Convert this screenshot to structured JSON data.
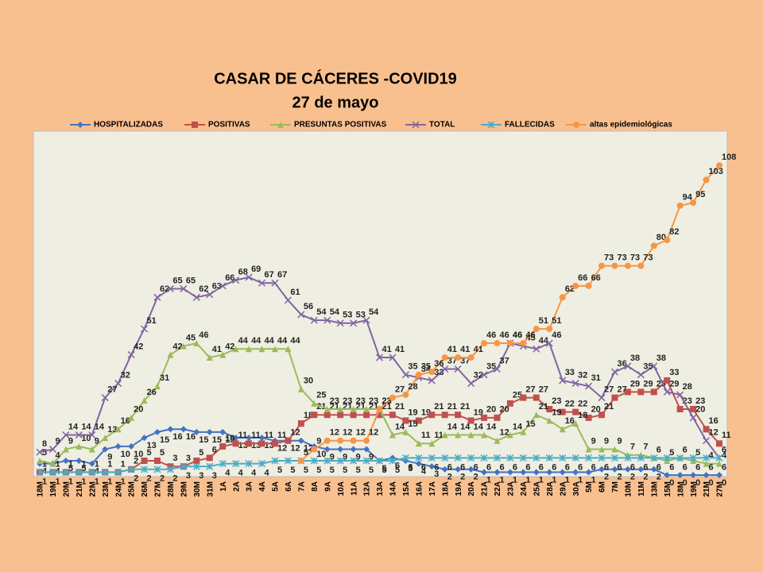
{
  "chart_data": {
    "type": "line",
    "title": "CASAR DE CÁCERES -COVID19",
    "subtitle": "27 de mayo",
    "categories": [
      "18M",
      "19M",
      "20M",
      "21M",
      "22M",
      "23M",
      "24M",
      "25M",
      "26M",
      "27M",
      "28M",
      "29M",
      "30M",
      "31M",
      "1A",
      "2A",
      "3A",
      "4A",
      "5A",
      "6A",
      "7A",
      "8A",
      "9A",
      "10A",
      "11A",
      "12A",
      "13A",
      "14A",
      "15A",
      "16A",
      "17A",
      "18A",
      "19A",
      "20A",
      "21A",
      "22A",
      "23A",
      "24A",
      "25A",
      "28A",
      "29A",
      "30A",
      "5M",
      "6M",
      "7M",
      "10M",
      "11M",
      "13M",
      "15M",
      "18M",
      "19M",
      "21M",
      "27M"
    ],
    "ylim": [
      0,
      120
    ],
    "legend": "top",
    "series": [
      {
        "name": "HOSPITALIZADAS",
        "color": "#4472c4",
        "marker": "diamond",
        "values": [
          4,
          4,
          5,
          5,
          4,
          9,
          10,
          10,
          13,
          15,
          16,
          16,
          15,
          15,
          15,
          13,
          13,
          13,
          12,
          12,
          12,
          10,
          9,
          9,
          9,
          9,
          5,
          6,
          5,
          4,
          3,
          2,
          2,
          2,
          1,
          1,
          1,
          1,
          1,
          1,
          1,
          1,
          1,
          2,
          2,
          2,
          2,
          2,
          0,
          0,
          0,
          0,
          0
        ]
      },
      {
        "name": "POSITIVAS",
        "color": "#c0504d",
        "marker": "square",
        "values": [
          1,
          1,
          1,
          1,
          1,
          1,
          1,
          2,
          5,
          5,
          3,
          3,
          5,
          6,
          10,
          11,
          11,
          11,
          11,
          12,
          18,
          21,
          21,
          21,
          21,
          21,
          21,
          21,
          19,
          19,
          21,
          21,
          21,
          19,
          20,
          20,
          25,
          27,
          27,
          23,
          22,
          22,
          20,
          21,
          27,
          29,
          29,
          29,
          33,
          23,
          23,
          16,
          11
        ]
      },
      {
        "name": "PRESUNTAS POSITIVAS",
        "color": "#9bbb59",
        "marker": "triangle",
        "values": [
          5,
          4,
          9,
          10,
          9,
          13,
          16,
          20,
          26,
          31,
          42,
          45,
          46,
          41,
          42,
          44,
          44,
          44,
          44,
          44,
          30,
          25,
          23,
          23,
          23,
          23,
          23,
          14,
          15,
          11,
          11,
          14,
          14,
          14,
          14,
          12,
          14,
          15,
          21,
          19,
          16,
          18,
          9,
          9,
          9,
          7,
          7,
          6,
          5,
          6,
          5,
          4,
          4
        ]
      },
      {
        "name": "TOTAL",
        "color": "#8064a2",
        "marker": "x",
        "values": [
          8,
          9,
          14,
          14,
          14,
          27,
          32,
          42,
          51,
          62,
          65,
          65,
          62,
          63,
          66,
          68,
          69,
          67,
          67,
          61,
          56,
          54,
          54,
          53,
          53,
          54,
          41,
          41,
          35,
          34,
          33,
          37,
          37,
          32,
          35,
          37,
          46,
          45,
          44,
          46,
          33,
          32,
          31,
          27,
          36,
          38,
          35,
          38,
          29,
          28,
          20,
          12,
          6
        ]
      },
      {
        "name": "FALLECIDAS",
        "color": "#4bacc6",
        "marker": "star",
        "values": [
          1,
          1,
          1,
          1,
          1,
          1,
          1,
          2,
          2,
          2,
          2,
          3,
          3,
          3,
          4,
          4,
          4,
          4,
          5,
          5,
          5,
          5,
          5,
          5,
          5,
          5,
          5,
          5,
          6,
          6,
          6,
          6,
          6,
          6,
          6,
          6,
          6,
          6,
          6,
          6,
          6,
          6,
          6,
          6,
          6,
          6,
          6,
          6,
          6,
          6,
          6,
          6,
          6
        ]
      },
      {
        "name": "altas epidemiológicas",
        "color": "#f79646",
        "marker": "circle",
        "values": [
          null,
          null,
          null,
          null,
          null,
          null,
          null,
          null,
          null,
          null,
          null,
          null,
          null,
          null,
          null,
          null,
          null,
          null,
          null,
          null,
          5,
          9,
          12,
          12,
          12,
          12,
          23,
          27,
          28,
          35,
          36,
          41,
          41,
          41,
          46,
          46,
          46,
          46,
          51,
          51,
          62,
          66,
          66,
          73,
          73,
          73,
          73,
          80,
          82,
          94,
          95,
          103,
          108
        ]
      }
    ]
  }
}
